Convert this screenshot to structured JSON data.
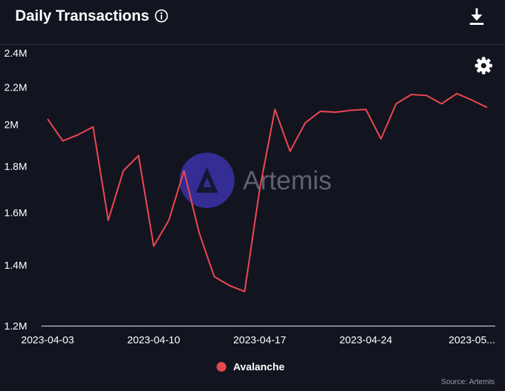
{
  "header": {
    "title": "Daily Transactions"
  },
  "watermark": {
    "text": "Artemis"
  },
  "source": {
    "text": "Source: Artemis"
  },
  "icons": {
    "info": "info-icon",
    "download": "download-icon",
    "settings": "gear-icon"
  },
  "colors": {
    "background": "#121420",
    "series": "#e8474f"
  },
  "chart_data": {
    "type": "line",
    "title": "Daily Transactions",
    "xlabel": "",
    "ylabel": "",
    "y_scale": "log",
    "ylim": [
      1200000,
      2450000
    ],
    "y_ticks": [
      {
        "value": 1200000,
        "label": "1.2M"
      },
      {
        "value": 1400000,
        "label": "1.4M"
      },
      {
        "value": 1600000,
        "label": "1.6M"
      },
      {
        "value": 1800000,
        "label": "1.8M"
      },
      {
        "value": 2000000,
        "label": "2M"
      },
      {
        "value": 2200000,
        "label": "2.2M"
      },
      {
        "value": 2400000,
        "label": "2.4M"
      }
    ],
    "x_ticks": [
      {
        "index": 0,
        "label": "2023-04-03"
      },
      {
        "index": 7,
        "label": "2023-04-10"
      },
      {
        "index": 14,
        "label": "2023-04-17"
      },
      {
        "index": 21,
        "label": "2023-04-24"
      },
      {
        "index": 28,
        "label": "2023-05..."
      }
    ],
    "x": [
      "2023-04-03",
      "2023-04-04",
      "2023-04-05",
      "2023-04-06",
      "2023-04-07",
      "2023-04-08",
      "2023-04-09",
      "2023-04-10",
      "2023-04-11",
      "2023-04-12",
      "2023-04-13",
      "2023-04-14",
      "2023-04-15",
      "2023-04-16",
      "2023-04-17",
      "2023-04-18",
      "2023-04-19",
      "2023-04-20",
      "2023-04-21",
      "2023-04-22",
      "2023-04-23",
      "2023-04-24",
      "2023-04-25",
      "2023-04-26",
      "2023-04-27",
      "2023-04-28",
      "2023-04-29",
      "2023-04-30",
      "2023-05-01",
      "2023-05-02"
    ],
    "series": [
      {
        "name": "Avalanche",
        "color": "#e8474f",
        "values": [
          2030000,
          1920000,
          1950000,
          1990000,
          1570000,
          1780000,
          1850000,
          1470000,
          1570000,
          1780000,
          1520000,
          1360000,
          1330000,
          1310000,
          1700000,
          2080000,
          1870000,
          2010000,
          2070000,
          2065000,
          2075000,
          2080000,
          1930000,
          2110000,
          2160000,
          2155000,
          2110000,
          2165000,
          2130000,
          2090000
        ]
      }
    ],
    "legend": "bottom-center",
    "grid": false
  }
}
